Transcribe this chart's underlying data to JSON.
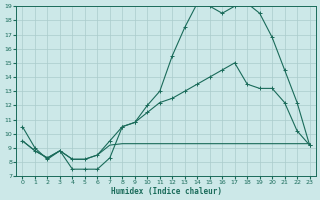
{
  "xlabel": "Humidex (Indice chaleur)",
  "xlim": [
    -0.5,
    23.5
  ],
  "ylim": [
    7,
    19
  ],
  "yticks": [
    7,
    8,
    9,
    10,
    11,
    12,
    13,
    14,
    15,
    16,
    17,
    18,
    19
  ],
  "xticks": [
    0,
    1,
    2,
    3,
    4,
    5,
    6,
    7,
    8,
    9,
    10,
    11,
    12,
    13,
    14,
    15,
    16,
    17,
    18,
    19,
    20,
    21,
    22,
    23
  ],
  "bg_color": "#cce8e8",
  "line_color": "#1a6b5a",
  "grid_color": "#aacccc",
  "line1_marker": {
    "x": [
      0,
      1,
      2,
      3,
      4,
      5,
      6,
      7,
      8,
      9,
      10,
      11,
      12,
      13,
      14,
      15,
      16,
      17,
      18,
      19,
      20,
      21,
      22,
      23
    ],
    "y": [
      10.5,
      9.0,
      8.2,
      8.8,
      7.5,
      7.5,
      7.5,
      8.3,
      10.5,
      10.8,
      12.0,
      13.0,
      15.5,
      17.5,
      19.2,
      19.0,
      18.5,
      19.0,
      19.2,
      18.5,
      16.8,
      14.5,
      12.2,
      9.2
    ]
  },
  "line2_marker": {
    "x": [
      0,
      1,
      2,
      3,
      4,
      5,
      6,
      7,
      8,
      9,
      10,
      11,
      12,
      13,
      14,
      15,
      16,
      17,
      18,
      19,
      20,
      21,
      22,
      23
    ],
    "y": [
      9.5,
      8.8,
      8.3,
      8.8,
      8.2,
      8.2,
      8.5,
      9.5,
      10.5,
      10.8,
      11.5,
      12.2,
      12.5,
      13.0,
      13.5,
      14.0,
      14.5,
      15.0,
      13.5,
      13.2,
      13.2,
      12.2,
      10.2,
      9.2
    ]
  },
  "line3_flat": {
    "x": [
      0,
      1,
      2,
      3,
      4,
      5,
      6,
      7,
      8,
      9,
      10,
      11,
      12,
      13,
      14,
      15,
      16,
      17,
      18,
      19,
      20,
      21,
      22,
      23
    ],
    "y": [
      9.5,
      8.8,
      8.3,
      8.8,
      8.2,
      8.2,
      8.5,
      9.2,
      9.3,
      9.3,
      9.3,
      9.3,
      9.3,
      9.3,
      9.3,
      9.3,
      9.3,
      9.3,
      9.3,
      9.3,
      9.3,
      9.3,
      9.3,
      9.3
    ]
  }
}
